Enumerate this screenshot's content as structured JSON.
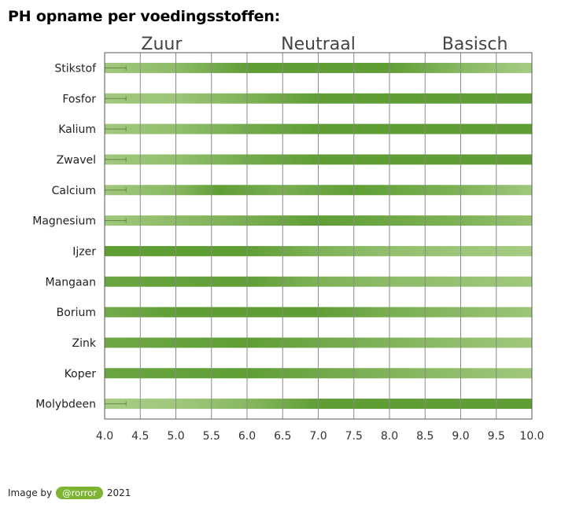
{
  "page": {
    "title": "PH opname per voedingsstoffen:"
  },
  "credit": {
    "prefix": "Image by",
    "handle": "@rorror",
    "year": "2021"
  },
  "chart_data": {
    "type": "bar",
    "orientation": "horizontal",
    "title": "",
    "xlabel": "",
    "ylabel": "",
    "xlim": [
      4.0,
      10.0
    ],
    "x_ticks": [
      "4.0",
      "4.5",
      "5.0",
      "5.5",
      "6.0",
      "6.5",
      "7.0",
      "7.5",
      "8.0",
      "8.5",
      "9.0",
      "9.5",
      "10.0"
    ],
    "grid": true,
    "zones": [
      {
        "label": "Zuur",
        "ph": 4.8
      },
      {
        "label": "Neutraal",
        "ph": 7.0
      },
      {
        "label": "Basisch",
        "ph": 9.2
      }
    ],
    "color_scale": {
      "light": "#c5dfa4",
      "mid": "#8cbf5a",
      "dark": "#5f9e35"
    },
    "categories": [
      "Stikstof",
      "Fosfor",
      "Kalium",
      "Zwavel",
      "Calcium",
      "Magnesium",
      "Ijzer",
      "Mangaan",
      "Borium",
      "Zink",
      "Koper",
      "Molybdeen"
    ],
    "series": [
      {
        "values": [
          [
            4.0,
            0.35
          ],
          [
            5.0,
            0.55
          ],
          [
            6.0,
            1.0
          ],
          [
            8.0,
            1.0
          ],
          [
            9.0,
            0.6
          ],
          [
            10.0,
            0.3
          ]
        ],
        "whisker": [
          4.0,
          4.3
        ]
      },
      {
        "values": [
          [
            4.0,
            0.35
          ],
          [
            5.0,
            0.4
          ],
          [
            6.0,
            0.7
          ],
          [
            7.0,
            1.0
          ],
          [
            10.0,
            1.0
          ]
        ],
        "whisker": [
          4.0,
          4.3
        ]
      },
      {
        "values": [
          [
            4.0,
            0.35
          ],
          [
            5.0,
            0.5
          ],
          [
            6.0,
            0.8
          ],
          [
            7.0,
            1.0
          ],
          [
            10.0,
            1.0
          ]
        ],
        "whisker": [
          4.0,
          4.3
        ]
      },
      {
        "values": [
          [
            4.0,
            0.35
          ],
          [
            5.0,
            0.5
          ],
          [
            6.0,
            0.8
          ],
          [
            7.0,
            1.0
          ],
          [
            10.0,
            1.0
          ]
        ],
        "whisker": [
          4.0,
          4.3
        ]
      },
      {
        "values": [
          [
            4.0,
            0.35
          ],
          [
            5.0,
            0.6
          ],
          [
            5.6,
            1.0
          ],
          [
            6.5,
            0.75
          ],
          [
            7.5,
            1.0
          ],
          [
            9.0,
            0.7
          ],
          [
            10.0,
            0.35
          ]
        ],
        "whisker": [
          4.0,
          4.3
        ]
      },
      {
        "values": [
          [
            4.0,
            0.35
          ],
          [
            5.0,
            0.55
          ],
          [
            6.0,
            0.75
          ],
          [
            7.0,
            1.0
          ],
          [
            9.0,
            0.7
          ],
          [
            10.0,
            0.45
          ]
        ],
        "whisker": [
          4.0,
          4.3
        ]
      },
      {
        "values": [
          [
            4.0,
            1.0
          ],
          [
            6.0,
            1.0
          ],
          [
            7.0,
            0.7
          ],
          [
            8.0,
            0.5
          ],
          [
            10.0,
            0.3
          ]
        ],
        "whisker": null
      },
      {
        "values": [
          [
            4.0,
            0.9
          ],
          [
            6.0,
            1.0
          ],
          [
            7.0,
            0.7
          ],
          [
            8.0,
            0.55
          ],
          [
            10.0,
            0.35
          ]
        ],
        "whisker": null
      },
      {
        "values": [
          [
            4.0,
            0.8
          ],
          [
            5.0,
            1.0
          ],
          [
            7.0,
            1.0
          ],
          [
            8.0,
            0.75
          ],
          [
            10.0,
            0.4
          ]
        ],
        "whisker": null
      },
      {
        "values": [
          [
            4.0,
            0.85
          ],
          [
            6.0,
            1.0
          ],
          [
            7.5,
            0.75
          ],
          [
            10.0,
            0.35
          ]
        ],
        "whisker": null
      },
      {
        "values": [
          [
            4.0,
            0.9
          ],
          [
            6.0,
            1.0
          ],
          [
            7.5,
            0.75
          ],
          [
            10.0,
            0.35
          ]
        ],
        "whisker": null
      },
      {
        "values": [
          [
            4.0,
            0.3
          ],
          [
            5.0,
            0.35
          ],
          [
            6.0,
            0.6
          ],
          [
            7.0,
            1.0
          ],
          [
            10.0,
            1.0
          ]
        ],
        "whisker": [
          4.0,
          4.3
        ]
      }
    ]
  }
}
